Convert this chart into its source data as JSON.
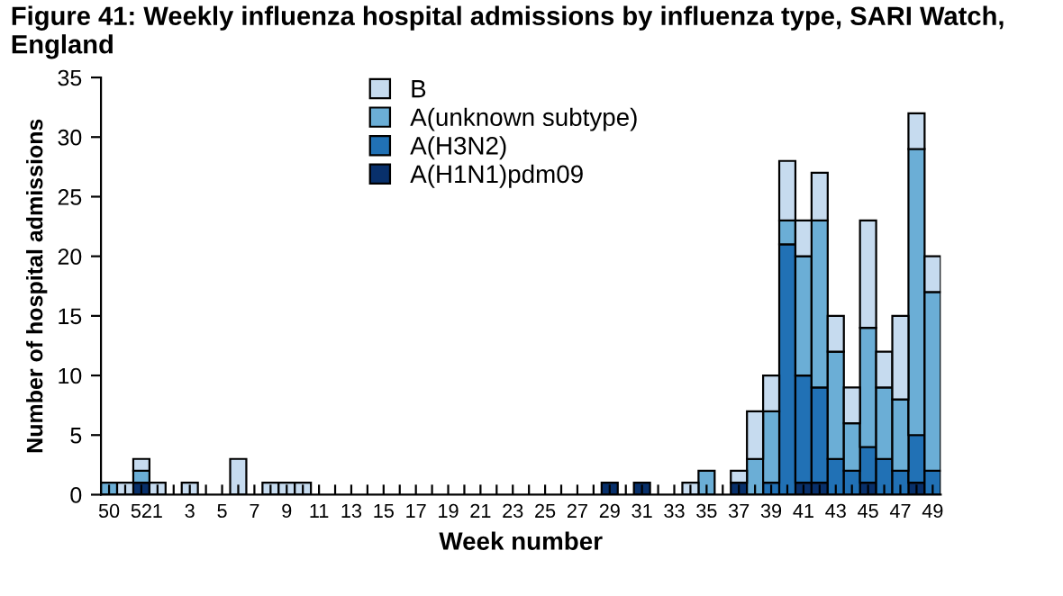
{
  "chart_data": {
    "type": "bar",
    "title": "Figure 41: Weekly influenza hospital admissions by influenza type, SARI Watch, England",
    "xlabel": "Week number",
    "ylabel": "Number of hospital admissions",
    "categories": [
      "50",
      null,
      "52",
      "1",
      null,
      "3",
      null,
      "5",
      null,
      "7",
      null,
      "9",
      null,
      "11",
      null,
      "13",
      null,
      "15",
      null,
      "17",
      null,
      "19",
      null,
      "21",
      null,
      "23",
      null,
      "25",
      null,
      "27",
      null,
      "29",
      null,
      "31",
      null,
      "33",
      null,
      "35",
      null,
      "37",
      null,
      "39",
      null,
      "41",
      null,
      "43",
      null,
      "45",
      null,
      "47",
      null,
      "49"
    ],
    "stacked": true,
    "ylim": [
      0,
      35
    ],
    "yticks": [
      0,
      5,
      10,
      15,
      20,
      25,
      30,
      35
    ],
    "grid": false,
    "legend": "top",
    "series": [
      {
        "name": "A(H1N1)pdm09",
        "color": "#08306b",
        "values": [
          0,
          0,
          1,
          0,
          0,
          0,
          0,
          0,
          0,
          0,
          0,
          0,
          0,
          0,
          0,
          0,
          0,
          0,
          0,
          0,
          0,
          0,
          0,
          0,
          0,
          0,
          0,
          0,
          0,
          0,
          0,
          1,
          0,
          1,
          0,
          0,
          0,
          0,
          0,
          1,
          0,
          0,
          0,
          1,
          1,
          0,
          0,
          1,
          0,
          0,
          1,
          0
        ]
      },
      {
        "name": "A(H3N2)",
        "color": "#2171b5",
        "values": [
          0,
          0,
          0,
          0,
          0,
          0,
          0,
          0,
          0,
          0,
          0,
          0,
          0,
          0,
          0,
          0,
          0,
          0,
          0,
          0,
          0,
          0,
          0,
          0,
          0,
          0,
          0,
          0,
          0,
          0,
          0,
          0,
          0,
          0,
          0,
          0,
          0,
          0,
          0,
          0,
          0,
          1,
          21,
          9,
          8,
          3,
          2,
          3,
          3,
          2,
          4,
          2
        ]
      },
      {
        "name": "A(unknown subtype)",
        "color": "#6baed6",
        "values": [
          1,
          0,
          1,
          0,
          0,
          0,
          0,
          0,
          0,
          0,
          0,
          0,
          0,
          0,
          0,
          0,
          0,
          0,
          0,
          0,
          0,
          0,
          0,
          0,
          0,
          0,
          0,
          0,
          0,
          0,
          0,
          0,
          0,
          0,
          0,
          0,
          0,
          2,
          0,
          0,
          3,
          6,
          2,
          10,
          14,
          9,
          4,
          10,
          6,
          6,
          24,
          15
        ]
      },
      {
        "name": "B",
        "color": "#c6dbef",
        "values": [
          0,
          1,
          1,
          1,
          0,
          1,
          0,
          0,
          3,
          0,
          1,
          1,
          1,
          0,
          0,
          0,
          0,
          0,
          0,
          0,
          0,
          0,
          0,
          0,
          0,
          0,
          0,
          0,
          0,
          0,
          0,
          0,
          0,
          0,
          0,
          0,
          1,
          0,
          0,
          1,
          4,
          3,
          5,
          3,
          4,
          3,
          3,
          9,
          3,
          7,
          3,
          3
        ]
      }
    ]
  }
}
